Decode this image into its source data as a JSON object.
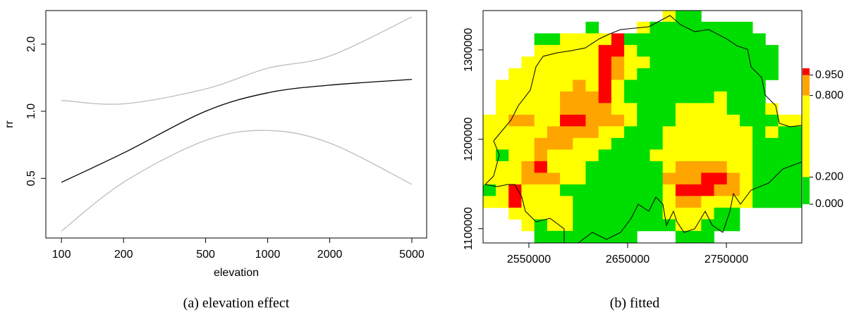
{
  "chart_data": [
    {
      "type": "line",
      "caption": "(a) elevation effect",
      "xlabel": "elevation",
      "ylabel": "rr",
      "x": [
        100,
        200,
        500,
        1000,
        2000,
        5000
      ],
      "series": [
        {
          "color": "#000000",
          "values": [
            0.48,
            0.65,
            1.0,
            1.21,
            1.31,
            1.39
          ]
        },
        {
          "color": "#bebebe",
          "values": [
            1.12,
            1.08,
            1.26,
            1.56,
            1.77,
            2.65
          ]
        },
        {
          "color": "#bebebe",
          "values": [
            0.29,
            0.48,
            0.74,
            0.82,
            0.72,
            0.47
          ]
        }
      ],
      "xlog": true,
      "ylog": true,
      "xlim": [
        84,
        5900
      ],
      "ylim": [
        0.27,
        2.83
      ],
      "xticks": [
        100,
        200,
        500,
        1000,
        2000,
        5000
      ],
      "yticks": [
        0.5,
        {
          "value": 1,
          "label": "1.0"
        },
        {
          "value": 2,
          "label": "2.0"
        }
      ]
    },
    {
      "type": "heatmap",
      "caption": "(b) fitted",
      "x": [
        2510000,
        2523000,
        2536000,
        2549000,
        2562000,
        2575000,
        2588000,
        2601000,
        2614000,
        2627000,
        2640000,
        2653000,
        2666000,
        2679000,
        2692000,
        2705000,
        2718000,
        2731000,
        2744000,
        2757000,
        2770000,
        2783000,
        2796000,
        2809000,
        2822000
      ],
      "y": [
        1338000,
        1325000,
        1312000,
        1299000,
        1286000,
        1273000,
        1260000,
        1247000,
        1234000,
        1221000,
        1208000,
        1195000,
        1182000,
        1169000,
        1156000,
        1143000,
        1130000,
        1117000,
        1104000,
        1091000
      ],
      "z": [
        [
          null,
          null,
          null,
          null,
          null,
          null,
          null,
          null,
          null,
          null,
          null,
          null,
          null,
          null,
          0.5,
          0.1,
          0.1,
          null,
          null,
          null,
          null,
          null,
          null,
          null,
          null
        ],
        [
          null,
          null,
          null,
          null,
          null,
          null,
          null,
          null,
          0.1,
          null,
          null,
          null,
          0.5,
          0.1,
          0.1,
          0.1,
          0.1,
          0.1,
          0.1,
          0.1,
          0.1,
          null,
          null,
          null,
          null
        ],
        [
          null,
          null,
          null,
          null,
          0.1,
          0.1,
          0.5,
          0.5,
          0.5,
          0.5,
          0.97,
          0.1,
          0.1,
          0.1,
          0.1,
          0.1,
          0.1,
          0.1,
          0.1,
          0.1,
          0.1,
          0.1,
          null,
          null,
          null
        ],
        [
          null,
          null,
          null,
          null,
          0.5,
          0.5,
          0.5,
          0.5,
          0.5,
          0.97,
          0.97,
          0.5,
          0.1,
          0.1,
          0.1,
          0.1,
          0.1,
          0.1,
          0.1,
          0.1,
          0.1,
          0.1,
          0.1,
          null,
          null
        ],
        [
          null,
          null,
          null,
          0.5,
          0.5,
          0.5,
          0.5,
          0.5,
          0.5,
          0.97,
          0.88,
          0.5,
          0.5,
          0.1,
          0.1,
          0.1,
          0.1,
          0.1,
          0.1,
          0.1,
          0.1,
          0.1,
          0.1,
          null,
          null
        ],
        [
          null,
          null,
          0.5,
          0.5,
          0.5,
          0.5,
          0.5,
          0.5,
          0.5,
          0.97,
          0.88,
          0.5,
          0.1,
          0.1,
          0.1,
          0.1,
          0.1,
          0.1,
          0.1,
          0.1,
          0.1,
          0.1,
          0.1,
          null,
          null
        ],
        [
          null,
          0.5,
          0.5,
          0.5,
          0.5,
          0.5,
          0.5,
          0.88,
          0.5,
          0.97,
          0.5,
          0.1,
          0.1,
          0.1,
          0.1,
          0.1,
          0.1,
          0.1,
          0.1,
          0.1,
          0.1,
          0.1,
          null,
          null,
          null
        ],
        [
          null,
          0.5,
          0.5,
          0.5,
          0.5,
          0.5,
          0.88,
          0.88,
          0.88,
          0.97,
          0.5,
          0.1,
          0.1,
          0.1,
          0.1,
          0.1,
          0.1,
          0.1,
          0.5,
          0.1,
          0.1,
          0.1,
          null,
          null,
          null
        ],
        [
          null,
          0.5,
          0.5,
          0.5,
          0.5,
          0.5,
          0.88,
          0.88,
          0.88,
          0.88,
          0.5,
          0.5,
          0.1,
          0.1,
          0.1,
          0.5,
          0.5,
          0.5,
          0.5,
          0.1,
          0.1,
          0.1,
          0.5,
          null,
          null
        ],
        [
          0.5,
          0.5,
          0.88,
          0.88,
          0.5,
          0.5,
          0.97,
          0.97,
          0.88,
          0.88,
          0.88,
          0.5,
          0.1,
          0.1,
          0.1,
          0.5,
          0.5,
          0.5,
          0.5,
          0.5,
          0.1,
          0.1,
          0.1,
          0.5,
          0.5
        ],
        [
          0.5,
          0.5,
          0.5,
          0.5,
          0.5,
          0.88,
          0.88,
          0.88,
          0.88,
          0.5,
          0.5,
          0.1,
          0.1,
          0.1,
          0.5,
          0.5,
          0.5,
          0.5,
          0.5,
          0.5,
          0.5,
          0.1,
          0.5,
          0.1,
          0.1
        ],
        [
          0.5,
          0.5,
          0.5,
          0.5,
          0.88,
          0.88,
          0.88,
          0.5,
          0.5,
          0.5,
          0.1,
          0.1,
          0.1,
          0.1,
          0.5,
          0.5,
          0.5,
          0.5,
          0.5,
          0.5,
          0.5,
          0.1,
          0.1,
          0.1,
          0.1
        ],
        [
          0.5,
          0.1,
          0.5,
          0.5,
          0.88,
          0.5,
          0.5,
          0.5,
          0.5,
          0.1,
          0.1,
          0.1,
          0.1,
          0.5,
          0.5,
          0.5,
          0.5,
          0.5,
          0.5,
          0.5,
          0.5,
          0.1,
          0.1,
          0.1,
          0.1
        ],
        [
          0.5,
          0.5,
          0.5,
          0.88,
          0.97,
          0.5,
          0.5,
          0.5,
          0.1,
          0.1,
          0.1,
          0.1,
          0.1,
          0.1,
          0.5,
          0.88,
          0.88,
          0.88,
          0.88,
          0.5,
          0.5,
          0.1,
          0.1,
          0.1,
          0.1
        ],
        [
          0.5,
          0.5,
          0.5,
          0.88,
          0.88,
          0.88,
          0.5,
          0.5,
          0.1,
          0.1,
          0.1,
          0.1,
          0.1,
          0.1,
          0.88,
          0.88,
          0.88,
          0.97,
          0.97,
          0.88,
          0.5,
          0.1,
          0.1,
          0.1,
          0.1
        ],
        [
          0.1,
          0.5,
          0.97,
          0.5,
          0.5,
          0.5,
          0.1,
          0.1,
          0.1,
          0.1,
          0.1,
          0.1,
          0.1,
          0.1,
          0.5,
          0.97,
          0.97,
          0.97,
          0.88,
          0.88,
          0.5,
          0.1,
          0.1,
          0.1,
          0.1
        ],
        [
          0.5,
          0.5,
          0.97,
          0.5,
          0.5,
          0.5,
          0.5,
          0.1,
          0.1,
          0.1,
          0.1,
          0.1,
          0.1,
          0.1,
          0.5,
          0.88,
          0.88,
          0.5,
          0.5,
          0.5,
          0.5,
          0.1,
          0.1,
          0.1,
          0.1
        ],
        [
          null,
          null,
          0.5,
          0.5,
          0.5,
          0.5,
          0.5,
          0.1,
          0.1,
          0.1,
          0.1,
          0.1,
          0.1,
          0.1,
          0.5,
          0.5,
          0.5,
          0.5,
          0.1,
          0.1,
          null,
          null,
          null,
          null,
          null
        ],
        [
          null,
          null,
          null,
          0.5,
          0.1,
          0.5,
          0.5,
          0.1,
          0.1,
          0.1,
          0.1,
          0.1,
          0.1,
          0.1,
          0.1,
          0.5,
          0.5,
          0.1,
          0.1,
          0.1,
          null,
          null,
          null,
          null,
          null
        ],
        [
          null,
          null,
          null,
          null,
          0.1,
          0.1,
          0.1,
          0.1,
          0.1,
          0.1,
          0.1,
          0.1,
          null,
          null,
          null,
          0.1,
          0.1,
          0.1,
          null,
          null,
          null,
          null,
          null,
          null,
          null
        ]
      ],
      "xlim": [
        2503600,
        2826400
      ],
      "ylim": [
        1084000,
        1344000
      ],
      "xticks": [
        2550000,
        2650000,
        2750000
      ],
      "yticks": [
        1100000,
        1200000,
        1300000
      ],
      "colorbar_lim": [
        0,
        1
      ],
      "colorbar_ticks": [
        {
          "value": 0,
          "label": "0.000"
        },
        {
          "value": 0.2,
          "label": "0.200"
        },
        {
          "value": 0.8,
          "label": "0.800"
        },
        {
          "value": 0.95,
          "label": "0.950"
        }
      ],
      "colors": [
        "#00dd00",
        "#ffff00",
        "#ffa500",
        "#ff0000"
      ]
    }
  ]
}
